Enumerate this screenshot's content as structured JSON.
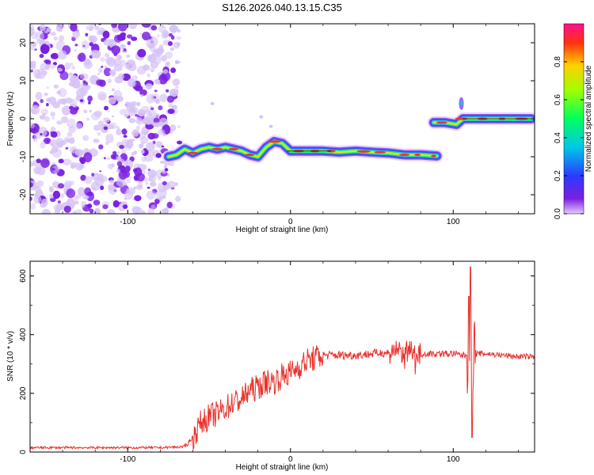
{
  "title": "S126.2026.040.13.15.C35",
  "colors": {
    "noise": "#7a1fe0",
    "noise_light": "#d6c2f7",
    "snr_line": "#e8322c",
    "ridge_center": "#ff3030"
  },
  "chart_data": [
    {
      "type": "heatmap",
      "xlabel": "Height of straight line (km)",
      "ylabel": "Frequency (Hz)",
      "xlim": [
        -160,
        150
      ],
      "ylim": [
        -25,
        25
      ],
      "xticks": [
        -100,
        0,
        100
      ],
      "yticks": [
        -20,
        -10,
        0,
        10,
        20
      ],
      "grid": false,
      "noise_region_x": [
        -160,
        -72
      ],
      "ridge": [
        {
          "x": -75,
          "y": -10
        },
        {
          "x": -70,
          "y": -9.5
        },
        {
          "x": -65,
          "y": -8
        },
        {
          "x": -60,
          "y": -9
        },
        {
          "x": -55,
          "y": -8
        },
        {
          "x": -50,
          "y": -7.5
        },
        {
          "x": -45,
          "y": -8
        },
        {
          "x": -40,
          "y": -7.5
        },
        {
          "x": -35,
          "y": -8
        },
        {
          "x": -30,
          "y": -8.5
        },
        {
          "x": -25,
          "y": -9.5
        },
        {
          "x": -20,
          "y": -10
        },
        {
          "x": -15,
          "y": -7.5
        },
        {
          "x": -10,
          "y": -6
        },
        {
          "x": -5,
          "y": -6.5
        },
        {
          "x": 0,
          "y": -8.5
        },
        {
          "x": 10,
          "y": -8.5
        },
        {
          "x": 20,
          "y": -8.5
        },
        {
          "x": 30,
          "y": -8.8
        },
        {
          "x": 40,
          "y": -8.5
        },
        {
          "x": 50,
          "y": -8.8
        },
        {
          "x": 60,
          "y": -9
        },
        {
          "x": 70,
          "y": -9.5
        },
        {
          "x": 80,
          "y": -9.5
        },
        {
          "x": 90,
          "y": -9.8
        }
      ],
      "ridge2": [
        {
          "x": 88,
          "y": -1
        },
        {
          "x": 95,
          "y": -1
        },
        {
          "x": 102,
          "y": -1.5
        },
        {
          "x": 106,
          "y": 0
        },
        {
          "x": 115,
          "y": 0
        },
        {
          "x": 130,
          "y": 0
        },
        {
          "x": 148,
          "y": 0
        }
      ],
      "colorbar": {
        "label": "Normalized spectral amplitude",
        "range": [
          0,
          1
        ],
        "ticks": [
          "0.0",
          "0.2",
          "0.4",
          "0.6",
          "0.8"
        ]
      }
    },
    {
      "type": "line",
      "xlabel": "Height of straight line (km)",
      "ylabel": "SNR (10 * v/v)",
      "xlim": [
        -160,
        150
      ],
      "ylim": [
        0,
        650
      ],
      "xticks": [
        -100,
        0,
        100
      ],
      "yticks": [
        0,
        200,
        400,
        600
      ],
      "grid": false,
      "series": [
        {
          "x": [
            -160,
            -140,
            -120,
            -100,
            -80,
            -65,
            -60,
            -55,
            -50,
            -45,
            -40,
            -35,
            -30,
            -25,
            -20,
            -15,
            -10,
            -5,
            0,
            10,
            20,
            30,
            40,
            50,
            60,
            70,
            80,
            90,
            100,
            105,
            108,
            110,
            112,
            115,
            120,
            130,
            140,
            150
          ],
          "y": [
            15,
            15,
            15,
            15,
            15,
            18,
            50,
            100,
            120,
            130,
            150,
            170,
            180,
            210,
            220,
            240,
            240,
            260,
            270,
            310,
            330,
            330,
            330,
            335,
            340,
            340,
            335,
            335,
            335,
            330,
            330,
            330,
            330,
            335,
            335,
            330,
            325,
            325
          ]
        }
      ]
    }
  ]
}
